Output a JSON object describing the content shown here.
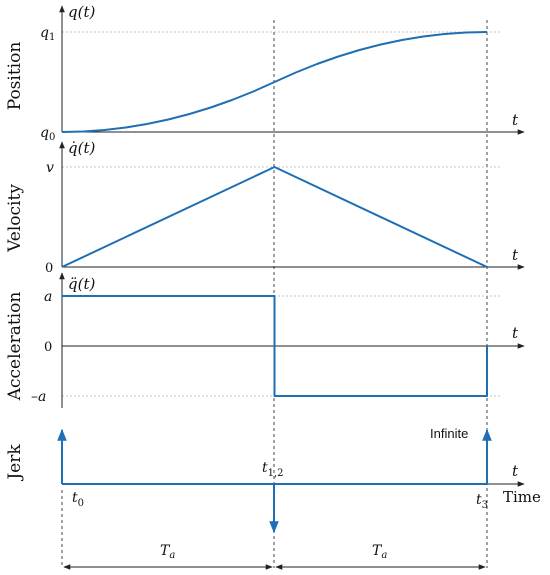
{
  "chart_data": {
    "type": "line",
    "time_marks": [
      {
        "name": "t0",
        "label_main": "t",
        "label_sub": "0",
        "t": 0
      },
      {
        "name": "t12",
        "label_main": "t",
        "label_sub": "1,2",
        "t": 1
      },
      {
        "name": "t3",
        "label_main": "t",
        "label_sub": "3",
        "t": 2
      }
    ],
    "x_axis": {
      "variable": "t",
      "label": "Time",
      "range": [
        0,
        2
      ]
    },
    "durations": [
      {
        "label_main": "T",
        "label_sub": "a",
        "from": 0,
        "to": 1
      },
      {
        "label_main": "T",
        "label_sub": "a",
        "from": 1,
        "to": 2
      }
    ],
    "panels": [
      {
        "name": "position",
        "ylabel": "Position",
        "func_label": "q(t)",
        "yticks": [
          {
            "main": "q",
            "sub": "0",
            "value": 0
          },
          {
            "main": "q",
            "sub": "1",
            "value": 1
          }
        ],
        "x": [
          0,
          0.1,
          0.2,
          0.3,
          0.4,
          0.5,
          0.6,
          0.7,
          0.8,
          0.9,
          1.0,
          1.1,
          1.2,
          1.3,
          1.4,
          1.5,
          1.6,
          1.7,
          1.8,
          1.9,
          2.0
        ],
        "y": [
          0,
          0.005,
          0.02,
          0.045,
          0.08,
          0.125,
          0.18,
          0.245,
          0.32,
          0.405,
          0.5,
          0.595,
          0.68,
          0.755,
          0.82,
          0.875,
          0.92,
          0.955,
          0.98,
          0.995,
          1.0
        ]
      },
      {
        "name": "velocity",
        "ylabel": "Velocity",
        "func_label": "q̇(t)",
        "yticks": [
          {
            "main": "0",
            "sub": "",
            "value": 0
          },
          {
            "main": "v",
            "sub": "",
            "value": 1
          }
        ],
        "x": [
          0,
          1,
          2
        ],
        "y": [
          0,
          1,
          0
        ]
      },
      {
        "name": "acceleration",
        "ylabel": "Acceleration",
        "func_label": "q̈(t)",
        "yticks": [
          {
            "main": "a",
            "sub": "",
            "value": 1
          },
          {
            "main": "0",
            "sub": "",
            "value": 0
          },
          {
            "main": "–a",
            "sub": "",
            "value": -1
          }
        ],
        "x": [
          0,
          1,
          1,
          2,
          2
        ],
        "y": [
          1,
          1,
          -1,
          -1,
          0
        ]
      },
      {
        "name": "jerk",
        "ylabel": "Jerk",
        "annotation": "Infinite",
        "impulses": [
          {
            "t": 0,
            "direction": "up"
          },
          {
            "t": 1,
            "direction": "down"
          },
          {
            "t": 2,
            "direction": "up"
          }
        ]
      }
    ],
    "colors": {
      "curve": "#1f6fb4",
      "axis": "#222222",
      "grid": "#b3b3b3"
    }
  }
}
